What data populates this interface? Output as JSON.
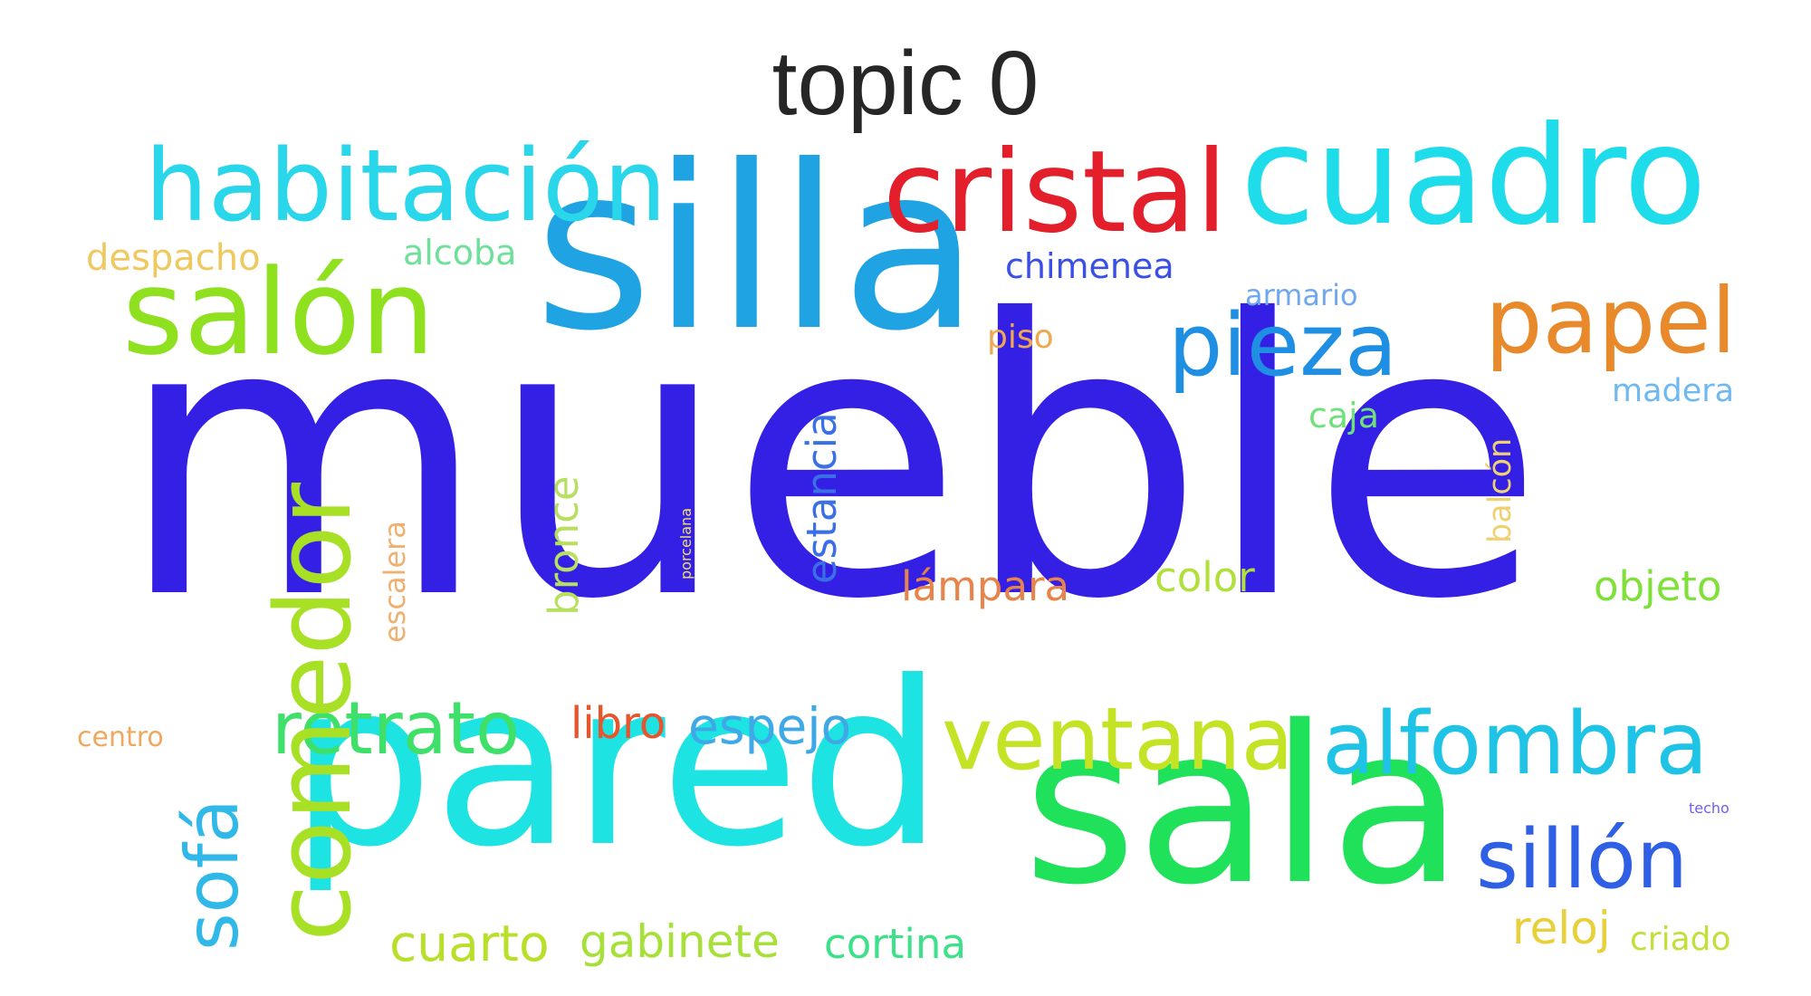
{
  "title": "topic 0",
  "words": [
    {
      "text": "mueble",
      "color": "#341fe5"
    },
    {
      "text": "silla",
      "color": "#1fa3e3"
    },
    {
      "text": "pared",
      "color": "#1ee3e3"
    },
    {
      "text": "sala",
      "color": "#1fe25a"
    },
    {
      "text": "cuadro",
      "color": "#1fdcea"
    },
    {
      "text": "salón",
      "color": "#8fe01f"
    },
    {
      "text": "habitación",
      "color": "#2ad6ea"
    },
    {
      "text": "cristal",
      "color": "#e21f2a"
    },
    {
      "text": "papel",
      "color": "#e88a2c"
    },
    {
      "text": "pieza",
      "color": "#1f8fe4"
    },
    {
      "text": "ventana",
      "color": "#c3e324"
    },
    {
      "text": "alfombra",
      "color": "#1fc3e6"
    },
    {
      "text": "retrato",
      "color": "#3fe06a"
    },
    {
      "text": "comedor",
      "color": "#a8e026"
    },
    {
      "text": "sofá",
      "color": "#2fb8e8"
    },
    {
      "text": "sillón",
      "color": "#2f5fe4"
    },
    {
      "text": "espejo",
      "color": "#3fa8e6"
    },
    {
      "text": "libro",
      "color": "#e8542c"
    },
    {
      "text": "cuarto",
      "color": "#b8e02a"
    },
    {
      "text": "gabinete",
      "color": "#a8e03a"
    },
    {
      "text": "cortina",
      "color": "#3fe08a"
    },
    {
      "text": "reloj",
      "color": "#e8d03a"
    },
    {
      "text": "criado",
      "color": "#c0e03a"
    },
    {
      "text": "chimenea",
      "color": "#3a4fe4"
    },
    {
      "text": "despacho",
      "color": "#f0c860"
    },
    {
      "text": "alcoba",
      "color": "#6fe09a"
    },
    {
      "text": "armario",
      "color": "#6fa8f0"
    },
    {
      "text": "piso",
      "color": "#f0a850"
    },
    {
      "text": "madera",
      "color": "#6fb8f0"
    },
    {
      "text": "caja",
      "color": "#6fe07a"
    },
    {
      "text": "estancia",
      "color": "#3a6fe6"
    },
    {
      "text": "bronce",
      "color": "#b8e060"
    },
    {
      "text": "escalera",
      "color": "#f0b070"
    },
    {
      "text": "porcelana",
      "color": "#f0e070"
    },
    {
      "text": "balcón",
      "color": "#f0d070"
    },
    {
      "text": "lámpara",
      "color": "#e8844a"
    },
    {
      "text": "color",
      "color": "#b0e03a"
    },
    {
      "text": "objeto",
      "color": "#7fe03a"
    },
    {
      "text": "centro",
      "color": "#f0a860"
    },
    {
      "text": "techo",
      "color": "#6f5fe8"
    }
  ]
}
